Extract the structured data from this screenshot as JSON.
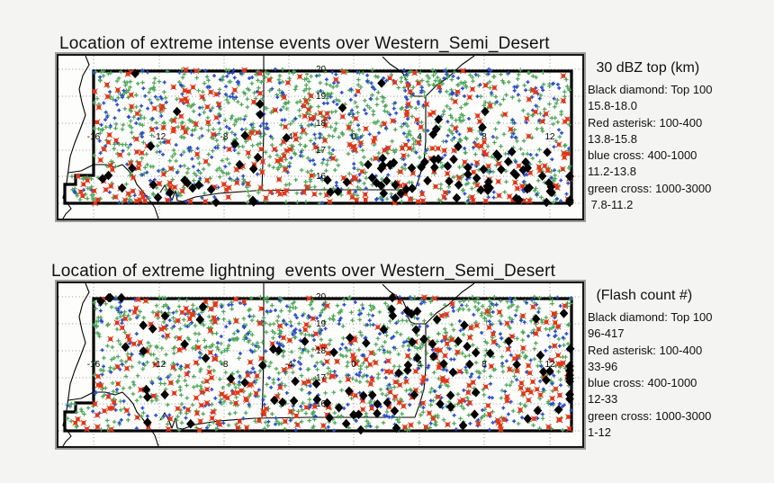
{
  "page": {
    "background": "#f4f4f2"
  },
  "figures": [
    {
      "title": "Location of extreme intense events over Western_Semi_Desert",
      "legend": {
        "title": " 30 dBZ top (km)",
        "lines": [
          "Black diamond: Top 100",
          "15.8-18.0",
          "Red asterisk: 100-400",
          "13.8-15.8",
          "blue cross: 400-1000",
          "11.2-13.8",
          "green cross: 1000-3000",
          " 7.8-11.2"
        ]
      }
    },
    {
      "title": "Location of extreme lightning  events over Western_Semi_Desert",
      "legend": {
        "title": " (Flash count #)",
        "lines": [
          "Black diamond: Top 100",
          "96-417",
          "Red asterisk: 100-400",
          "33-96",
          "blue cross: 400-1000",
          "12-33",
          "green cross: 1000-3000",
          "1-12"
        ]
      }
    }
  ],
  "map": {
    "lon_labels": [
      "-16",
      "-12",
      "-8",
      "-4",
      "0",
      "4",
      "8",
      "12"
    ],
    "lat_labels": [
      "20",
      "19",
      "18",
      "17",
      "16"
    ]
  },
  "chart_data": [
    {
      "type": "scatter",
      "title": "Location of extreme intense events over Western_Semi_Desert",
      "legend_title": "30 dBZ top (km)",
      "legend_position": "right",
      "grid": "dotted",
      "xlim": [
        -18.2,
        14.0
      ],
      "ylim": [
        14.4,
        20.5
      ],
      "x_gridlines": [
        -16,
        -12,
        -8,
        -4,
        0,
        4,
        8,
        12
      ],
      "y_gridlines": [
        15,
        16,
        17,
        18,
        19,
        20
      ],
      "region_outline_lon": [
        -16,
        13.4
      ],
      "region_outline_lat": [
        15,
        20
      ],
      "series": [
        {
          "name": "Black diamond: Top 100",
          "marker": "diamond",
          "color": "#000000",
          "rank_range": "Top 100",
          "value_range_km": "15.8-18.0",
          "approx_count": 100
        },
        {
          "name": "Red asterisk: 100-400",
          "marker": "asterisk",
          "color": "#e0381a",
          "rank_range": "100-400",
          "value_range_km": "13.8-15.8",
          "approx_count": 300
        },
        {
          "name": "blue cross: 400-1000",
          "marker": "cross",
          "color": "#2b4ccc",
          "rank_range": "400-1000",
          "value_range_km": "11.2-13.8",
          "approx_count": 600
        },
        {
          "name": "green cross: 1000-3000",
          "marker": "cross",
          "color": "#4da65a",
          "rank_range": "1000-3000",
          "value_range_km": "7.8-11.2",
          "approx_count": 2000
        }
      ]
    },
    {
      "type": "scatter",
      "title": "Location of extreme lightning  events over Western_Semi_Desert",
      "legend_title": "(Flash count #)",
      "legend_position": "right",
      "grid": "dotted",
      "xlim": [
        -18.2,
        14.0
      ],
      "ylim": [
        14.4,
        20.5
      ],
      "x_gridlines": [
        -16,
        -12,
        -8,
        -4,
        0,
        4,
        8,
        12
      ],
      "y_gridlines": [
        15,
        16,
        17,
        18,
        19,
        20
      ],
      "region_outline_lon": [
        -16,
        13.4
      ],
      "region_outline_lat": [
        15,
        20
      ],
      "series": [
        {
          "name": "Black diamond: Top 100",
          "marker": "diamond",
          "color": "#000000",
          "rank_range": "Top 100",
          "value_range_flashes": "96-417",
          "approx_count": 100
        },
        {
          "name": "Red asterisk: 100-400",
          "marker": "asterisk",
          "color": "#e0381a",
          "rank_range": "100-400",
          "value_range_flashes": "33-96",
          "approx_count": 300
        },
        {
          "name": "blue cross: 400-1000",
          "marker": "cross",
          "color": "#2b4ccc",
          "rank_range": "400-1000",
          "value_range_flashes": "12-33",
          "approx_count": 600
        },
        {
          "name": "green cross: 1000-3000",
          "marker": "cross",
          "color": "#4da65a",
          "rank_range": "1000-3000",
          "value_range_flashes": "1-12",
          "approx_count": 2000
        }
      ]
    }
  ]
}
